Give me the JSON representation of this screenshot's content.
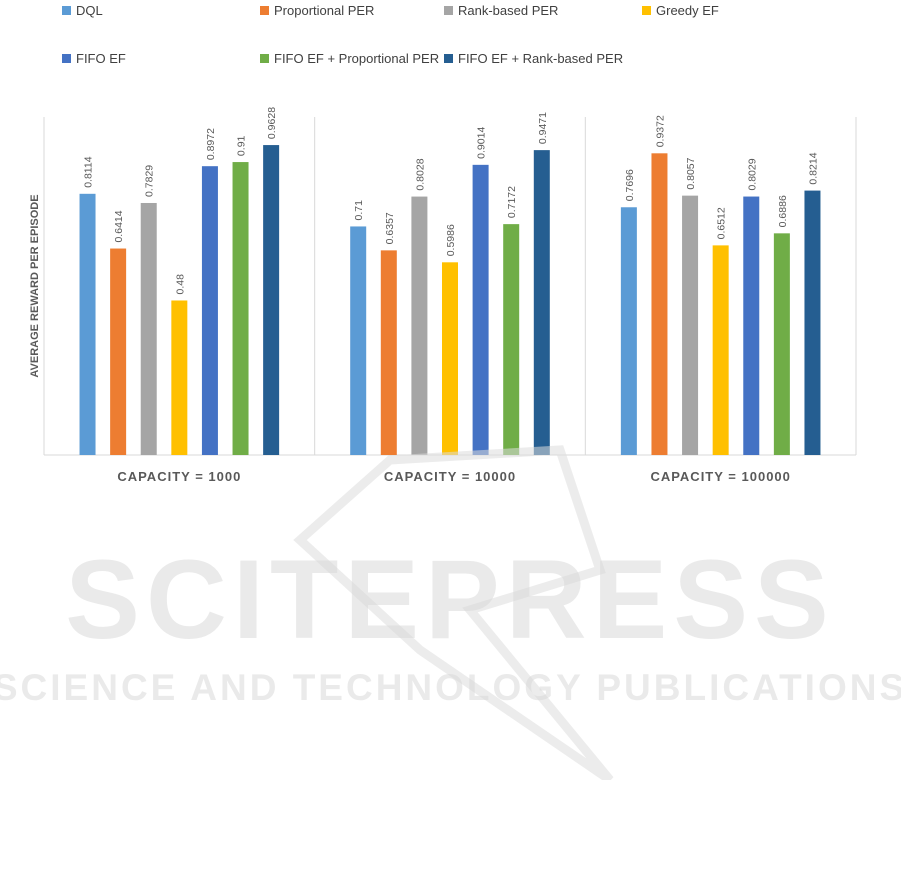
{
  "chart_data": {
    "type": "bar",
    "categories": [
      "CAPACITY = 1000",
      "CAPACITY = 10000",
      "CAPACITY = 100000"
    ],
    "series": [
      {
        "name": "DQL",
        "color": "#5B9BD5",
        "values": [
          0.8114,
          0.71,
          0.7696
        ],
        "labels": [
          "0.8114",
          "0.71",
          "0.7696"
        ]
      },
      {
        "name": "Proportional PER",
        "color": "#ED7D31",
        "values": [
          0.6414,
          0.6357,
          0.9372
        ],
        "labels": [
          "0.6414",
          "0.6357",
          "0.9372"
        ]
      },
      {
        "name": "Rank-based PER",
        "color": "#A5A5A5",
        "values": [
          0.7829,
          0.8028,
          0.8057
        ],
        "labels": [
          "0.7829",
          "0.8028",
          "0.8057"
        ]
      },
      {
        "name": "Greedy EF",
        "color": "#FFC000",
        "values": [
          0.48,
          0.5986,
          0.6512
        ],
        "labels": [
          "0.48",
          "0.5986",
          "0.6512"
        ]
      },
      {
        "name": "FIFO EF",
        "color": "#4472C4",
        "values": [
          0.8972,
          0.9014,
          0.8029
        ],
        "labels": [
          "0.8972",
          "0.9014",
          "0.8029"
        ]
      },
      {
        "name": "FIFO EF + Proportional PER",
        "color": "#70AD47",
        "values": [
          0.91,
          0.7172,
          0.6886
        ],
        "labels": [
          "0.91",
          "0.7172",
          "0.6886"
        ]
      },
      {
        "name": "FIFO EF + Rank-based PER",
        "color": "#255E91",
        "values": [
          0.9628,
          0.9471,
          0.8214
        ],
        "labels": [
          "0.9628",
          "0.9471",
          "0.8214"
        ]
      }
    ],
    "ylabel": "AVERAGE REWARD PER EPISODE",
    "xlabel": "",
    "title": "",
    "ylim": [
      0,
      1.05
    ],
    "grid": false,
    "legend_position": "top"
  },
  "watermark": {
    "line1": "SCITEPRESS",
    "line2": "SCIENCE AND TECHNOLOGY PUBLICATIONS"
  }
}
